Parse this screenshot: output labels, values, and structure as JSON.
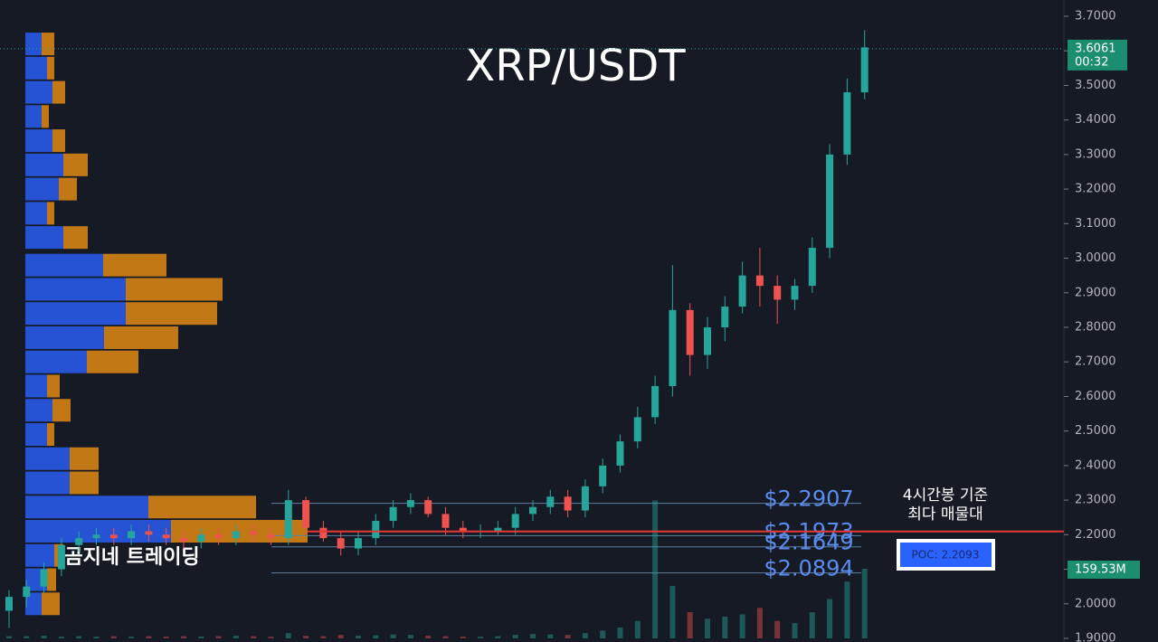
{
  "chart_data": {
    "type": "candlestick",
    "title": "XRP/USDT",
    "watermark": "곰지네 트레이딩",
    "annotation": [
      "4시간봉 기준",
      "최다 매물대"
    ],
    "ylim": [
      1.9,
      3.7
    ],
    "yticks": [
      {
        "value": 3.7,
        "label": "3.7000"
      },
      {
        "value": 3.6,
        "label": "3.6000"
      },
      {
        "value": 3.5,
        "label": "3.5000"
      },
      {
        "value": 3.4,
        "label": "3.4000"
      },
      {
        "value": 3.3,
        "label": "3.3000"
      },
      {
        "value": 3.2,
        "label": "3.2000"
      },
      {
        "value": 3.1,
        "label": "3.1000"
      },
      {
        "value": 3.0,
        "label": "3.0000"
      },
      {
        "value": 2.9,
        "label": "2.9000"
      },
      {
        "value": 2.8,
        "label": "2.8000"
      },
      {
        "value": 2.7,
        "label": "2.7000"
      },
      {
        "value": 2.6,
        "label": "2.6000"
      },
      {
        "value": 2.5,
        "label": "2.5000"
      },
      {
        "value": 2.4,
        "label": "2.4000"
      },
      {
        "value": 2.3,
        "label": "2.3000"
      },
      {
        "value": 2.2,
        "label": "2.2000"
      },
      {
        "value": 2.1,
        "label": "2.1000"
      },
      {
        "value": 2.0,
        "label": "2.0000"
      },
      {
        "value": 1.9,
        "label": "1.9000"
      }
    ],
    "up_color": "#26a69a",
    "down_color": "#ef5350",
    "open": [
      1.98,
      2.02,
      2.05,
      2.1,
      2.17,
      2.19,
      2.2,
      2.19,
      2.21,
      2.2,
      2.19,
      2.18,
      2.2,
      2.19,
      2.21,
      2.2,
      2.19,
      2.3,
      2.22,
      2.19,
      2.16,
      2.19,
      2.24,
      2.28,
      2.3,
      2.26,
      2.22,
      2.21,
      2.21,
      2.22,
      2.26,
      2.28,
      2.31,
      2.27,
      2.34,
      2.4,
      2.47,
      2.54,
      2.63,
      2.85,
      2.72,
      2.8,
      2.86,
      2.95,
      2.92,
      2.88,
      2.92,
      3.03,
      3.3,
      3.48
    ],
    "high": [
      2.04,
      2.07,
      2.12,
      2.19,
      2.21,
      2.22,
      2.22,
      2.23,
      2.23,
      2.22,
      2.21,
      2.22,
      2.22,
      2.23,
      2.23,
      2.22,
      2.33,
      2.31,
      2.24,
      2.21,
      2.21,
      2.26,
      2.3,
      2.32,
      2.31,
      2.28,
      2.24,
      2.23,
      2.24,
      2.28,
      2.3,
      2.33,
      2.33,
      2.36,
      2.42,
      2.49,
      2.57,
      2.66,
      2.98,
      2.87,
      2.83,
      2.89,
      2.99,
      3.03,
      2.95,
      2.94,
      3.06,
      3.33,
      3.52,
      3.66
    ],
    "low": [
      1.93,
      1.99,
      2.03,
      2.08,
      2.15,
      2.17,
      2.17,
      2.17,
      2.18,
      2.17,
      2.16,
      2.16,
      2.17,
      2.17,
      2.18,
      2.17,
      2.17,
      2.2,
      2.18,
      2.14,
      2.14,
      2.17,
      2.22,
      2.26,
      2.25,
      2.2,
      2.19,
      2.19,
      2.2,
      2.2,
      2.24,
      2.26,
      2.25,
      2.25,
      2.32,
      2.38,
      2.45,
      2.52,
      2.6,
      2.66,
      2.68,
      2.76,
      2.84,
      2.86,
      2.81,
      2.85,
      2.9,
      3.0,
      3.27,
      3.46
    ],
    "close": [
      2.02,
      2.05,
      2.1,
      2.17,
      2.19,
      2.2,
      2.19,
      2.21,
      2.2,
      2.19,
      2.18,
      2.2,
      2.19,
      2.21,
      2.2,
      2.19,
      2.3,
      2.22,
      2.19,
      2.16,
      2.19,
      2.24,
      2.28,
      2.3,
      2.26,
      2.22,
      2.21,
      2.21,
      2.22,
      2.26,
      2.28,
      2.31,
      2.27,
      2.34,
      2.4,
      2.47,
      2.54,
      2.63,
      2.85,
      2.72,
      2.8,
      2.86,
      2.95,
      2.92,
      2.88,
      2.92,
      3.03,
      3.3,
      3.48,
      3.61
    ],
    "volume": [
      5,
      5,
      6,
      4,
      5,
      4,
      5,
      4,
      5,
      4,
      5,
      4,
      5,
      6,
      5,
      4,
      12,
      6,
      5,
      8,
      6,
      7,
      9,
      8,
      6,
      5,
      4,
      4,
      5,
      8,
      10,
      9,
      8,
      12,
      18,
      25,
      40,
      316,
      120,
      60,
      45,
      50,
      55,
      70,
      40,
      35,
      60,
      90,
      130,
      159.53
    ],
    "volume_last_label": "159.53M",
    "profile": {
      "buy_color": "#2962ff",
      "sell_color": "#e08a12",
      "levels": [
        3.62,
        3.55,
        3.48,
        3.41,
        3.34,
        3.27,
        3.2,
        3.13,
        3.06,
        2.98,
        2.91,
        2.84,
        2.77,
        2.7,
        2.63,
        2.56,
        2.49,
        2.42,
        2.35,
        2.28,
        2.21,
        2.14,
        2.07,
        2.0
      ],
      "buy": [
        18,
        24,
        30,
        18,
        30,
        42,
        37,
        24,
        42,
        86,
        111,
        111,
        87,
        68,
        24,
        30,
        24,
        49,
        49,
        136,
        161,
        32,
        24,
        18
      ],
      "sell": [
        14,
        8,
        14,
        8,
        14,
        27,
        20,
        8,
        27,
        70,
        107,
        101,
        82,
        57,
        14,
        20,
        8,
        32,
        32,
        119,
        151,
        10,
        10,
        20
      ]
    },
    "last_price": 3.6061,
    "countdown": "00:32",
    "poc": {
      "value": 2.2093,
      "label": "POC: 2.2093"
    },
    "levels": [
      {
        "value": 2.2907,
        "label": "$2.2907"
      },
      {
        "value": 2.1973,
        "label": "$2.1973"
      },
      {
        "value": 2.1649,
        "label": "$2.1649"
      },
      {
        "value": 2.0894,
        "label": "$2.0894"
      }
    ]
  }
}
